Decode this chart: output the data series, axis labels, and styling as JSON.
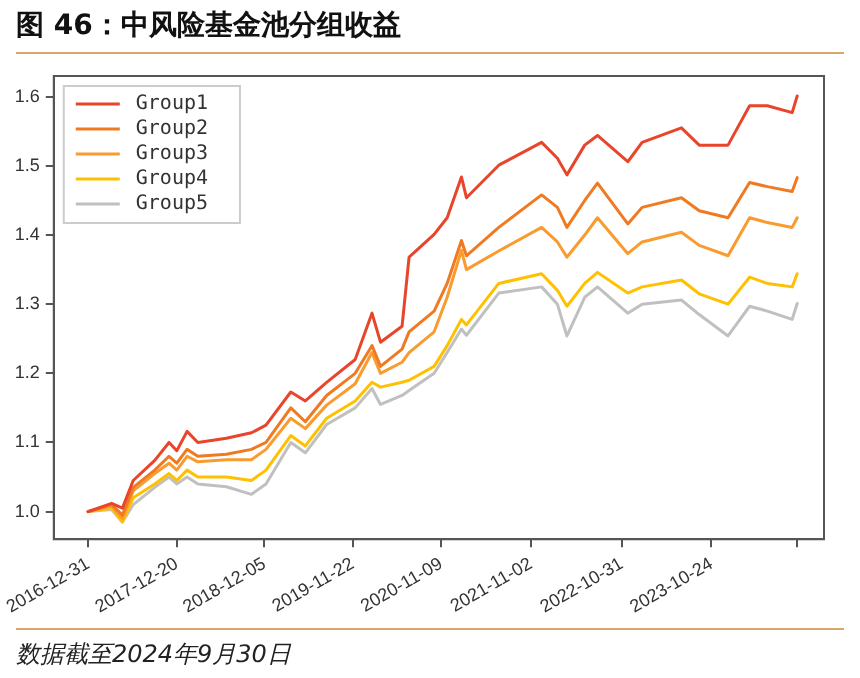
{
  "chart_data": {
    "type": "line",
    "title": "图 46：中风险基金池分组收益",
    "x": [
      "2016-12-31",
      "2017-04-04",
      "2017-05-17",
      "2017-06-29",
      "2017-09-23",
      "2017-11-19",
      "2017-12-20",
      "2018-01-30",
      "2018-03-14",
      "2018-07-06",
      "2018-10-14",
      "2018-12-11",
      "2019-03-20",
      "2019-05-17",
      "2019-08-10",
      "2019-12-02",
      "2020-02-07",
      "2020-03-12",
      "2020-06-06",
      "2020-07-04",
      "2020-10-12",
      "2020-12-03",
      "2021-01-29",
      "2021-02-18",
      "2021-06-27",
      "2021-12-15",
      "2022-02-16",
      "2022-03-26",
      "2022-06-05",
      "2022-07-26",
      "2022-11-24",
      "2023-01-20",
      "2023-06-26",
      "2023-09-05",
      "2023-12-29",
      "2024-03-24",
      "2024-06-03",
      "2024-09-10",
      "2024-09-30"
    ],
    "series": [
      {
        "name": "Group1",
        "color": "#e8452b",
        "values": [
          1.0,
          1.012,
          1.005,
          1.045,
          1.074,
          1.1,
          1.088,
          1.116,
          1.1,
          1.106,
          1.114,
          1.125,
          1.173,
          1.16,
          1.187,
          1.22,
          1.287,
          1.245,
          1.268,
          1.368,
          1.401,
          1.425,
          1.484,
          1.454,
          1.501,
          1.534,
          1.511,
          1.487,
          1.53,
          1.544,
          1.506,
          1.534,
          1.555,
          1.53,
          1.53,
          1.587,
          1.587,
          1.577,
          1.601
        ]
      },
      {
        "name": "Group2",
        "color": "#f07a22",
        "values": [
          1.0,
          1.01,
          0.995,
          1.035,
          1.06,
          1.08,
          1.07,
          1.09,
          1.08,
          1.083,
          1.09,
          1.1,
          1.15,
          1.13,
          1.168,
          1.2,
          1.24,
          1.21,
          1.235,
          1.26,
          1.29,
          1.33,
          1.392,
          1.37,
          1.411,
          1.458,
          1.44,
          1.411,
          1.45,
          1.475,
          1.416,
          1.44,
          1.454,
          1.435,
          1.425,
          1.476,
          1.47,
          1.463,
          1.483
        ]
      },
      {
        "name": "Group3",
        "color": "#f99b2e",
        "values": [
          1.0,
          1.008,
          0.99,
          1.03,
          1.055,
          1.07,
          1.06,
          1.08,
          1.072,
          1.075,
          1.075,
          1.09,
          1.135,
          1.12,
          1.154,
          1.185,
          1.23,
          1.2,
          1.216,
          1.23,
          1.26,
          1.31,
          1.378,
          1.35,
          1.377,
          1.411,
          1.39,
          1.368,
          1.4,
          1.425,
          1.373,
          1.39,
          1.404,
          1.385,
          1.37,
          1.425,
          1.418,
          1.411,
          1.425
        ]
      },
      {
        "name": "Group4",
        "color": "#ffc000",
        "values": [
          1.0,
          1.005,
          0.985,
          1.02,
          1.04,
          1.055,
          1.045,
          1.06,
          1.05,
          1.05,
          1.045,
          1.06,
          1.11,
          1.095,
          1.135,
          1.16,
          1.187,
          1.18,
          1.187,
          1.19,
          1.21,
          1.24,
          1.278,
          1.27,
          1.33,
          1.344,
          1.32,
          1.297,
          1.33,
          1.346,
          1.316,
          1.325,
          1.335,
          1.315,
          1.3,
          1.339,
          1.33,
          1.325,
          1.344
        ]
      },
      {
        "name": "Group5",
        "color": "#c0c0c0",
        "values": [
          1.0,
          1.003,
          0.985,
          1.01,
          1.035,
          1.05,
          1.04,
          1.05,
          1.04,
          1.036,
          1.025,
          1.04,
          1.1,
          1.085,
          1.126,
          1.15,
          1.178,
          1.155,
          1.168,
          1.175,
          1.2,
          1.23,
          1.264,
          1.255,
          1.316,
          1.325,
          1.3,
          1.254,
          1.31,
          1.325,
          1.287,
          1.3,
          1.306,
          1.285,
          1.254,
          1.297,
          1.29,
          1.278,
          1.301
        ]
      }
    ],
    "xlim": [
      "2016-08-16",
      "2025-01-15"
    ],
    "xticks": [
      {
        "value": "2016-12-31",
        "label": "2016-12-31"
      },
      {
        "value": "2017-12-20",
        "label": "2017-12-20"
      },
      {
        "value": "2018-12-05",
        "label": "2018-12-05"
      },
      {
        "value": "2019-11-22",
        "label": "2019-11-22"
      },
      {
        "value": "2020-11-09",
        "label": "2020-11-09"
      },
      {
        "value": "2021-11-02",
        "label": "2021-11-02"
      },
      {
        "value": "2022-10-31",
        "label": "2022-10-31"
      },
      {
        "value": "2023-10-24",
        "label": "2023-10-24"
      },
      {
        "value": "2024-09-30",
        "label": null
      }
    ],
    "ylim": [
      0.96,
      1.63
    ],
    "yticks": [
      {
        "value": 1,
        "label": "1.0"
      },
      1.1,
      1.2,
      1.3,
      1.4,
      1.5,
      1.6
    ],
    "grid": false,
    "legend": "top left",
    "marker": "none",
    "line_style": "solid",
    "annotations": [
      "数据截至2024年9月30日"
    ]
  }
}
